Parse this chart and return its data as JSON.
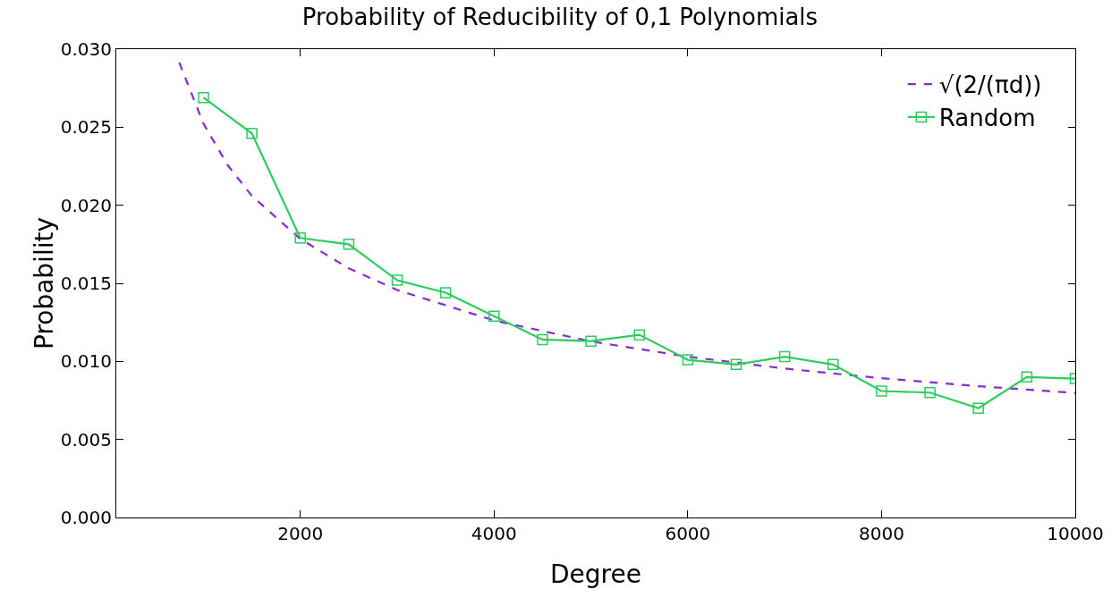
{
  "chart_data": {
    "type": "line",
    "title": "Probability of Reducibility of 0,1 Polynomials",
    "xlabel": "Degree",
    "ylabel": "Probability",
    "xlim": [
      100,
      10000
    ],
    "xticks": [
      2000,
      4000,
      6000,
      8000,
      10000
    ],
    "ylim": [
      0,
      0.03
    ],
    "yticks": [
      {
        "value": 0,
        "label": "0.000"
      },
      {
        "value": 0.005,
        "label": "0.005"
      },
      {
        "value": 0.01,
        "label": "0.010"
      },
      {
        "value": 0.015,
        "label": "0.015"
      },
      {
        "value": 0.02,
        "label": "0.020"
      },
      {
        "value": 0.025,
        "label": "0.025"
      },
      {
        "value": 0.03,
        "label": "0.030"
      }
    ],
    "grid": false,
    "legend": "top right",
    "series": [
      {
        "name": "√(2/(πd))",
        "color": "#8a2bd0",
        "line_style": "dashed",
        "marker": "none",
        "x": [
          750,
          1000,
          1250,
          1500,
          2000,
          2500,
          3000,
          4000,
          5000,
          6000,
          7000,
          8000,
          9000,
          10000
        ],
        "values": [
          0.02914,
          0.02523,
          0.02257,
          0.0206,
          0.01784,
          0.01596,
          0.01457,
          0.01262,
          0.01128,
          0.0103,
          0.00954,
          0.00892,
          0.00841,
          0.00798
        ]
      },
      {
        "name": "Random",
        "color": "#2ecc5f",
        "line_style": "solid",
        "marker": "square",
        "x": [
          1000,
          1500,
          2000,
          2500,
          3000,
          3500,
          4000,
          4500,
          5000,
          5500,
          6000,
          6500,
          7000,
          7500,
          8000,
          8500,
          9000,
          9500,
          10000
        ],
        "values": [
          0.0269,
          0.0246,
          0.0179,
          0.0175,
          0.0152,
          0.0144,
          0.0129,
          0.0114,
          0.0113,
          0.0117,
          0.0101,
          0.0098,
          0.0103,
          0.0098,
          0.0081,
          0.008,
          0.007,
          0.009,
          0.0089
        ]
      }
    ]
  }
}
